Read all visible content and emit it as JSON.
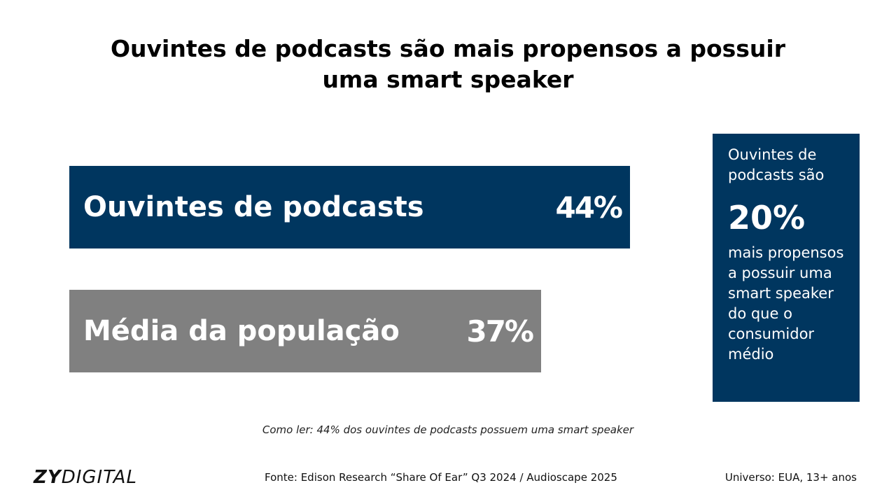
{
  "title": {
    "line1": "Ouvintes de podcasts são mais propensos a possuir",
    "line2": "uma smart speaker"
  },
  "chart_data": {
    "type": "bar",
    "orientation": "horizontal",
    "categories": [
      "Ouvintes de podcasts",
      "Média da população"
    ],
    "values": [
      44,
      37
    ],
    "value_labels": [
      "44%",
      "37%"
    ],
    "colors": [
      "#00365f",
      "#808080"
    ],
    "unit": "%",
    "xlim": [
      0,
      44
    ]
  },
  "callout": {
    "top_text": "Ouvintes de podcasts são",
    "big_value": "20%",
    "bottom_text": "mais propensos a possuir uma smart speaker do que o consumidor médio",
    "color": "#00365f"
  },
  "footer": {
    "note": "Como ler: 44% dos ouvintes de podcasts possuem uma smart speaker",
    "logo_bold": "ZY",
    "logo_light": "DIGITAL",
    "source": "Fonte: Edison Research “Share Of Ear” Q3 2024 / Audioscape 2025",
    "universe": "Universo: EUA, 13+ anos"
  }
}
